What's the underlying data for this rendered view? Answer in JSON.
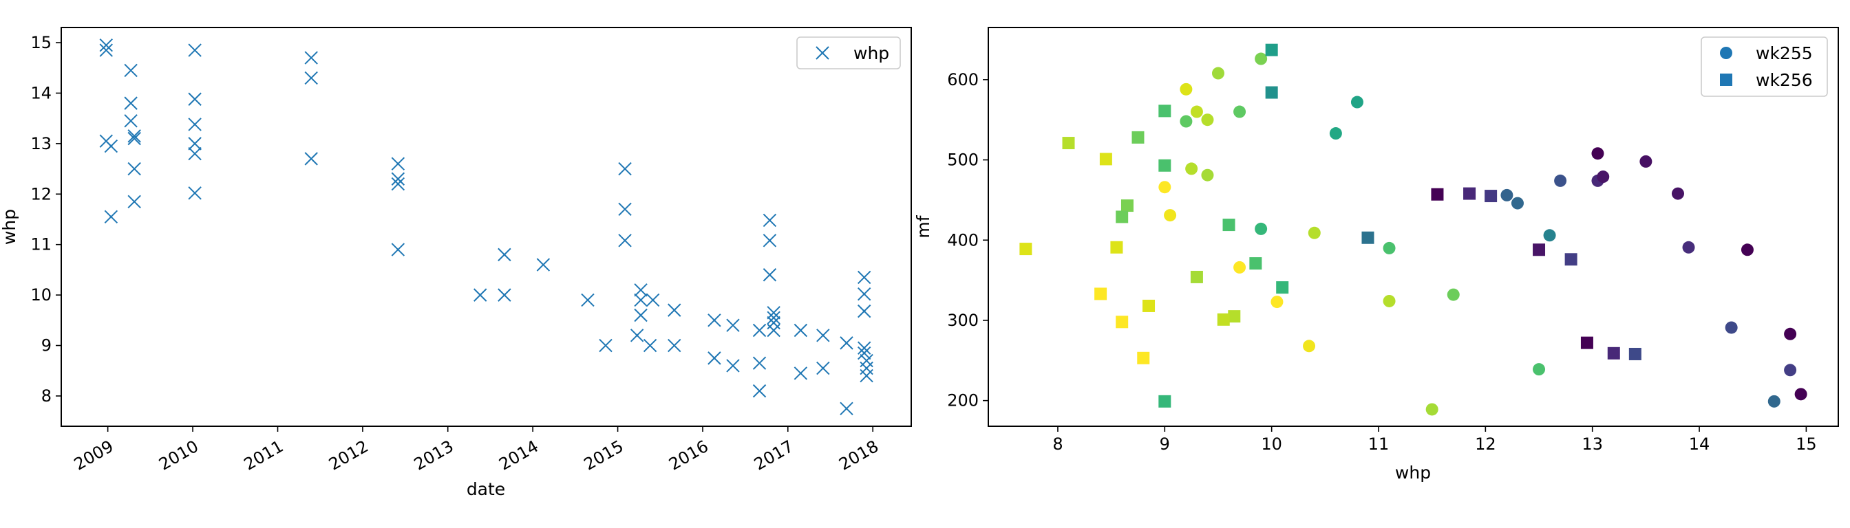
{
  "chart_data": [
    {
      "type": "scatter",
      "marker": "x",
      "color": "#1f77b4",
      "xlabel": "date",
      "ylabel": "whp",
      "xlim": [
        "2008-06-15",
        "2018-06-15"
      ],
      "ylim": [
        7.4,
        15.3
      ],
      "x_ticks": [
        "2009-01-01",
        "2010-01-01",
        "2011-01-01",
        "2012-01-01",
        "2013-01-01",
        "2014-01-01",
        "2015-01-01",
        "2016-01-01",
        "2017-01-01",
        "2018-01-01"
      ],
      "x_tick_labels": [
        "2009",
        "2010",
        "2011",
        "2012",
        "2013",
        "2014",
        "2015",
        "2016",
        "2017",
        "2018"
      ],
      "y_ticks": [
        8,
        9,
        10,
        11,
        12,
        13,
        14,
        15
      ],
      "y_tick_labels": [
        "8",
        "9",
        "10",
        "11",
        "12",
        "13",
        "14",
        "15"
      ],
      "grid": false,
      "legend": {
        "position": "upper-right",
        "entries": [
          "whp"
        ]
      },
      "series": [
        {
          "name": "whp",
          "points": [
            [
              "2008-12-25",
              14.95
            ],
            [
              "2008-12-25",
              14.85
            ],
            [
              "2008-12-25",
              13.05
            ],
            [
              "2009-01-15",
              12.95
            ],
            [
              "2009-01-15",
              11.55
            ],
            [
              "2009-04-10",
              14.45
            ],
            [
              "2009-04-10",
              13.8
            ],
            [
              "2009-04-10",
              13.45
            ],
            [
              "2009-04-25",
              13.15
            ],
            [
              "2009-04-25",
              13.1
            ],
            [
              "2009-04-25",
              12.5
            ],
            [
              "2009-04-25",
              11.85
            ],
            [
              "2010-01-10",
              14.85
            ],
            [
              "2010-01-10",
              13.88
            ],
            [
              "2010-01-10",
              13.38
            ],
            [
              "2010-01-10",
              13.0
            ],
            [
              "2010-01-10",
              12.8
            ],
            [
              "2010-01-10",
              12.02
            ],
            [
              "2011-05-25",
              14.7
            ],
            [
              "2011-05-25",
              14.3
            ],
            [
              "2011-05-25",
              12.7
            ],
            [
              "2012-06-01",
              12.6
            ],
            [
              "2012-06-01",
              12.3
            ],
            [
              "2012-06-01",
              12.2
            ],
            [
              "2012-06-01",
              10.9
            ],
            [
              "2013-05-20",
              10.0
            ],
            [
              "2013-09-01",
              10.8
            ],
            [
              "2013-09-01",
              10.0
            ],
            [
              "2014-02-15",
              10.6
            ],
            [
              "2014-08-25",
              9.9
            ],
            [
              "2014-11-10",
              9.0
            ],
            [
              "2015-02-01",
              12.5
            ],
            [
              "2015-02-01",
              11.7
            ],
            [
              "2015-02-01",
              11.08
            ],
            [
              "2015-04-10",
              10.1
            ],
            [
              "2015-04-10",
              9.9
            ],
            [
              "2015-04-10",
              9.6
            ],
            [
              "2015-03-25",
              9.2
            ],
            [
              "2015-06-01",
              9.9
            ],
            [
              "2015-05-20",
              9.0
            ],
            [
              "2015-09-01",
              9.7
            ],
            [
              "2015-09-01",
              9.0
            ],
            [
              "2016-02-20",
              9.5
            ],
            [
              "2016-02-20",
              8.75
            ],
            [
              "2016-05-10",
              9.4
            ],
            [
              "2016-05-10",
              8.6
            ],
            [
              "2016-09-01",
              9.3
            ],
            [
              "2016-09-01",
              8.65
            ],
            [
              "2016-09-01",
              8.1
            ],
            [
              "2016-10-15",
              11.48
            ],
            [
              "2016-10-15",
              11.08
            ],
            [
              "2016-10-15",
              10.4
            ],
            [
              "2016-11-01",
              9.65
            ],
            [
              "2016-11-01",
              9.55
            ],
            [
              "2016-11-01",
              9.45
            ],
            [
              "2016-11-01",
              9.3
            ],
            [
              "2017-02-25",
              9.3
            ],
            [
              "2017-02-25",
              8.45
            ],
            [
              "2017-06-01",
              9.2
            ],
            [
              "2017-06-01",
              8.55
            ],
            [
              "2017-09-10",
              9.05
            ],
            [
              "2017-09-10",
              7.75
            ],
            [
              "2017-11-25",
              10.35
            ],
            [
              "2017-11-25",
              10.02
            ],
            [
              "2017-11-25",
              9.68
            ],
            [
              "2017-11-25",
              8.95
            ],
            [
              "2017-11-25",
              8.85
            ],
            [
              "2017-12-05",
              8.7
            ],
            [
              "2017-12-05",
              8.55
            ],
            [
              "2017-12-05",
              8.4
            ]
          ]
        }
      ]
    },
    {
      "type": "scatter",
      "xlabel": "whp",
      "ylabel": "mf",
      "xlim": [
        7.35,
        15.3
      ],
      "ylim": [
        168,
        665
      ],
      "x_ticks": [
        8,
        9,
        10,
        11,
        12,
        13,
        14,
        15
      ],
      "x_tick_labels": [
        "8",
        "9",
        "10",
        "11",
        "12",
        "13",
        "14",
        "15"
      ],
      "y_ticks": [
        200,
        300,
        400,
        500,
        600
      ],
      "y_tick_labels": [
        "200",
        "300",
        "400",
        "500",
        "600"
      ],
      "grid": false,
      "colormap": "viridis (reversed by whp)",
      "legend": {
        "position": "upper-right",
        "entries": [
          "wk255",
          "wk256"
        ],
        "color": "#1f77b4"
      },
      "series": [
        {
          "name": "wk255",
          "marker": "circle",
          "points": [
            [
              9.5,
              608,
              "#9fda3a"
            ],
            [
              9.9,
              626,
              "#7ad151"
            ],
            [
              9.2,
              588,
              "#dde318"
            ],
            [
              9.3,
              560,
              "#c2df23"
            ],
            [
              9.2,
              548,
              "#5ec962"
            ],
            [
              9.4,
              550,
              "#b5de2b"
            ],
            [
              9.7,
              560,
              "#5ec962"
            ],
            [
              10.6,
              533,
              "#22a884"
            ],
            [
              10.8,
              572,
              "#20a486"
            ],
            [
              9.0,
              466,
              "#fde725"
            ],
            [
              9.25,
              489,
              "#b5de2b"
            ],
            [
              9.4,
              481,
              "#a5db36"
            ],
            [
              9.05,
              431,
              "#f1e51d"
            ],
            [
              9.9,
              414,
              "#35b779"
            ],
            [
              10.4,
              409,
              "#b5de2b"
            ],
            [
              11.1,
              390,
              "#4ac16d"
            ],
            [
              9.7,
              366,
              "#fde725"
            ],
            [
              10.05,
              323,
              "#fde725"
            ],
            [
              11.1,
              324,
              "#b5de2b"
            ],
            [
              11.7,
              332,
              "#6ccd5a"
            ],
            [
              10.35,
              268,
              "#f1e51d"
            ],
            [
              12.5,
              239,
              "#4ac16d"
            ],
            [
              11.5,
              189,
              "#a5db36"
            ],
            [
              12.2,
              456,
              "#33638d"
            ],
            [
              12.3,
              446,
              "#31688e"
            ],
            [
              12.7,
              474,
              "#3b528b"
            ],
            [
              12.6,
              406,
              "#26828e"
            ],
            [
              13.05,
              508,
              "#440154"
            ],
            [
              13.05,
              474,
              "#482878"
            ],
            [
              13.1,
              479,
              "#481567"
            ],
            [
              13.5,
              498,
              "#471063"
            ],
            [
              13.8,
              458,
              "#471365"
            ],
            [
              13.9,
              391,
              "#472d7b"
            ],
            [
              14.45,
              388,
              "#440154"
            ],
            [
              14.3,
              291,
              "#3e4989"
            ],
            [
              14.85,
              283,
              "#440154"
            ],
            [
              14.85,
              238,
              "#433e85"
            ],
            [
              14.95,
              208,
              "#440154"
            ],
            [
              14.7,
              199,
              "#31688e"
            ]
          ]
        },
        {
          "name": "wk256",
          "marker": "square",
          "points": [
            [
              10.0,
              637,
              "#1f9e89"
            ],
            [
              10.0,
              584,
              "#21918c"
            ],
            [
              9.0,
              561,
              "#4ac16d"
            ],
            [
              8.75,
              528,
              "#6ccd5a"
            ],
            [
              8.1,
              521,
              "#b5de2b"
            ],
            [
              8.45,
              501,
              "#dde318"
            ],
            [
              9.0,
              493,
              "#4ac16d"
            ],
            [
              8.65,
              443,
              "#7ad151"
            ],
            [
              8.6,
              429,
              "#6ccd5a"
            ],
            [
              9.6,
              419,
              "#4ac16d"
            ],
            [
              10.9,
              403,
              "#2c728e"
            ],
            [
              8.55,
              391,
              "#dde318"
            ],
            [
              7.7,
              389,
              "#dde318"
            ],
            [
              9.85,
              371,
              "#4ac16d"
            ],
            [
              9.3,
              354,
              "#a5db36"
            ],
            [
              10.1,
              341,
              "#35b779"
            ],
            [
              8.4,
              333,
              "#fde725"
            ],
            [
              8.85,
              318,
              "#dde318"
            ],
            [
              9.65,
              305,
              "#b5de2b"
            ],
            [
              9.55,
              301,
              "#c2df23"
            ],
            [
              8.6,
              298,
              "#fde725"
            ],
            [
              8.8,
              253,
              "#fde725"
            ],
            [
              9.0,
              199,
              "#35b779"
            ],
            [
              11.55,
              457,
              "#440154"
            ],
            [
              11.85,
              458,
              "#482878"
            ],
            [
              12.05,
              455,
              "#443983"
            ],
            [
              12.5,
              388,
              "#481567"
            ],
            [
              12.8,
              376,
              "#433e85"
            ],
            [
              12.95,
              272,
              "#440154"
            ],
            [
              13.2,
              259,
              "#482878"
            ],
            [
              13.4,
              258,
              "#3e4989"
            ]
          ]
        }
      ]
    }
  ]
}
